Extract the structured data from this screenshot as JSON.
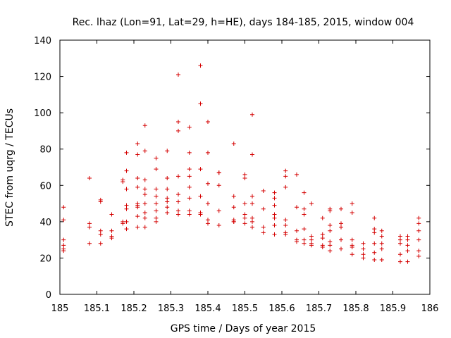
{
  "chart_data": {
    "type": "scatter",
    "title": "Rec. lhaz (Lon=91, Lat=29, h=HE), days 184-185, 2015, window 004",
    "xlabel": "GPS time / Days of year 2015",
    "ylabel": "STEC from uqrg / TECUs",
    "xlim": [
      185,
      186
    ],
    "ylim": [
      0,
      140
    ],
    "x_ticks": [
      "185",
      "185.1",
      "185.2",
      "185.3",
      "185.4",
      "185.5",
      "185.6",
      "185.7",
      "185.8",
      "185.9",
      "186"
    ],
    "y_ticks": [
      "0",
      "20",
      "40",
      "60",
      "80",
      "100",
      "120",
      "140"
    ],
    "grid": false,
    "marker": "+",
    "color": "#d40000",
    "series": [
      {
        "x": [
          185.01,
          185.01,
          185.01,
          185.01,
          185.01,
          185.01,
          185.08,
          185.08,
          185.08,
          185.08,
          185.11,
          185.11,
          185.11,
          185.11,
          185.11,
          185.14,
          185.14,
          185.14,
          185.14,
          185.17,
          185.17,
          185.17,
          185.17,
          185.18,
          185.18,
          185.18,
          185.18,
          185.18,
          185.18,
          185.18,
          185.21,
          185.21,
          185.21,
          185.21,
          185.21,
          185.21,
          185.21,
          185.21,
          185.21,
          185.23,
          185.23,
          185.23,
          185.23,
          185.23,
          185.23,
          185.23,
          185.23,
          185.23,
          185.26,
          185.26,
          185.26,
          185.26,
          185.26,
          185.26,
          185.26,
          185.26,
          185.29,
          185.29,
          185.29,
          185.29,
          185.29,
          185.29,
          185.29,
          185.32,
          185.32,
          185.32,
          185.32,
          185.32,
          185.32,
          185.32,
          185.32,
          185.35,
          185.35,
          185.35,
          185.35,
          185.35,
          185.35,
          185.35,
          185.35,
          185.38,
          185.38,
          185.38,
          185.38,
          185.38,
          185.38,
          185.4,
          185.4,
          185.4,
          185.4,
          185.4,
          185.4,
          185.43,
          185.43,
          185.43,
          185.43,
          185.43,
          185.47,
          185.47,
          185.47,
          185.47,
          185.47,
          185.47,
          185.5,
          185.5,
          185.5,
          185.5,
          185.5,
          185.5,
          185.52,
          185.52,
          185.52,
          185.52,
          185.52,
          185.52,
          185.52,
          185.55,
          185.55,
          185.55,
          185.55,
          185.58,
          185.58,
          185.58,
          185.58,
          185.58,
          185.58,
          185.58,
          185.61,
          185.61,
          185.61,
          185.61,
          185.61,
          185.61,
          185.61,
          185.64,
          185.64,
          185.64,
          185.64,
          185.64,
          185.66,
          185.66,
          185.66,
          185.66,
          185.66,
          185.66,
          185.68,
          185.68,
          185.68,
          185.68,
          185.68,
          185.71,
          185.71,
          185.71,
          185.71,
          185.71,
          185.73,
          185.73,
          185.73,
          185.73,
          185.73,
          185.73,
          185.73,
          185.76,
          185.76,
          185.76,
          185.76,
          185.76,
          185.79,
          185.79,
          185.79,
          185.79,
          185.79,
          185.79,
          185.82,
          185.82,
          185.82,
          185.82,
          185.85,
          185.85,
          185.85,
          185.85,
          185.85,
          185.85,
          185.87,
          185.87,
          185.87,
          185.87,
          185.87,
          185.92,
          185.92,
          185.92,
          185.92,
          185.92,
          185.94,
          185.94,
          185.94,
          185.94,
          185.94,
          185.97,
          185.97,
          185.97,
          185.97,
          185.97,
          185.97
        ],
        "y": [
          48,
          41,
          30,
          27,
          25,
          24,
          64,
          39,
          37,
          28,
          52,
          51,
          35,
          33,
          28,
          44,
          35,
          32,
          31,
          63,
          62,
          40,
          39,
          78,
          68,
          58,
          49,
          47,
          40,
          36,
          83,
          77,
          64,
          59,
          50,
          49,
          48,
          43,
          37,
          93,
          79,
          63,
          58,
          55,
          50,
          45,
          42,
          37,
          75,
          69,
          58,
          54,
          50,
          46,
          42,
          40,
          79,
          64,
          58,
          53,
          51,
          48,
          45,
          121,
          95,
          90,
          65,
          55,
          51,
          46,
          44,
          92,
          78,
          69,
          65,
          59,
          53,
          46,
          44,
          126,
          105,
          69,
          54,
          45,
          44,
          95,
          78,
          61,
          50,
          41,
          39,
          67,
          67,
          60,
          46,
          38,
          83,
          54,
          48,
          41,
          40,
          40,
          66,
          64,
          50,
          44,
          42,
          39,
          99,
          77,
          54,
          50,
          42,
          40,
          37,
          57,
          47,
          37,
          34,
          56,
          53,
          49,
          44,
          42,
          38,
          33,
          68,
          65,
          59,
          41,
          38,
          34,
          33,
          66,
          48,
          35,
          30,
          29,
          56,
          47,
          44,
          36,
          30,
          28,
          50,
          32,
          30,
          28,
          27,
          42,
          33,
          31,
          27,
          26,
          47,
          46,
          38,
          35,
          29,
          27,
          24,
          47,
          39,
          37,
          30,
          25,
          50,
          45,
          30,
          27,
          26,
          22,
          28,
          25,
          22,
          20,
          42,
          36,
          34,
          28,
          23,
          19,
          35,
          32,
          28,
          25,
          19,
          32,
          30,
          28,
          22,
          18,
          32,
          30,
          27,
          24,
          18,
          42,
          39,
          35,
          30,
          24,
          21
        ]
      }
    ]
  }
}
